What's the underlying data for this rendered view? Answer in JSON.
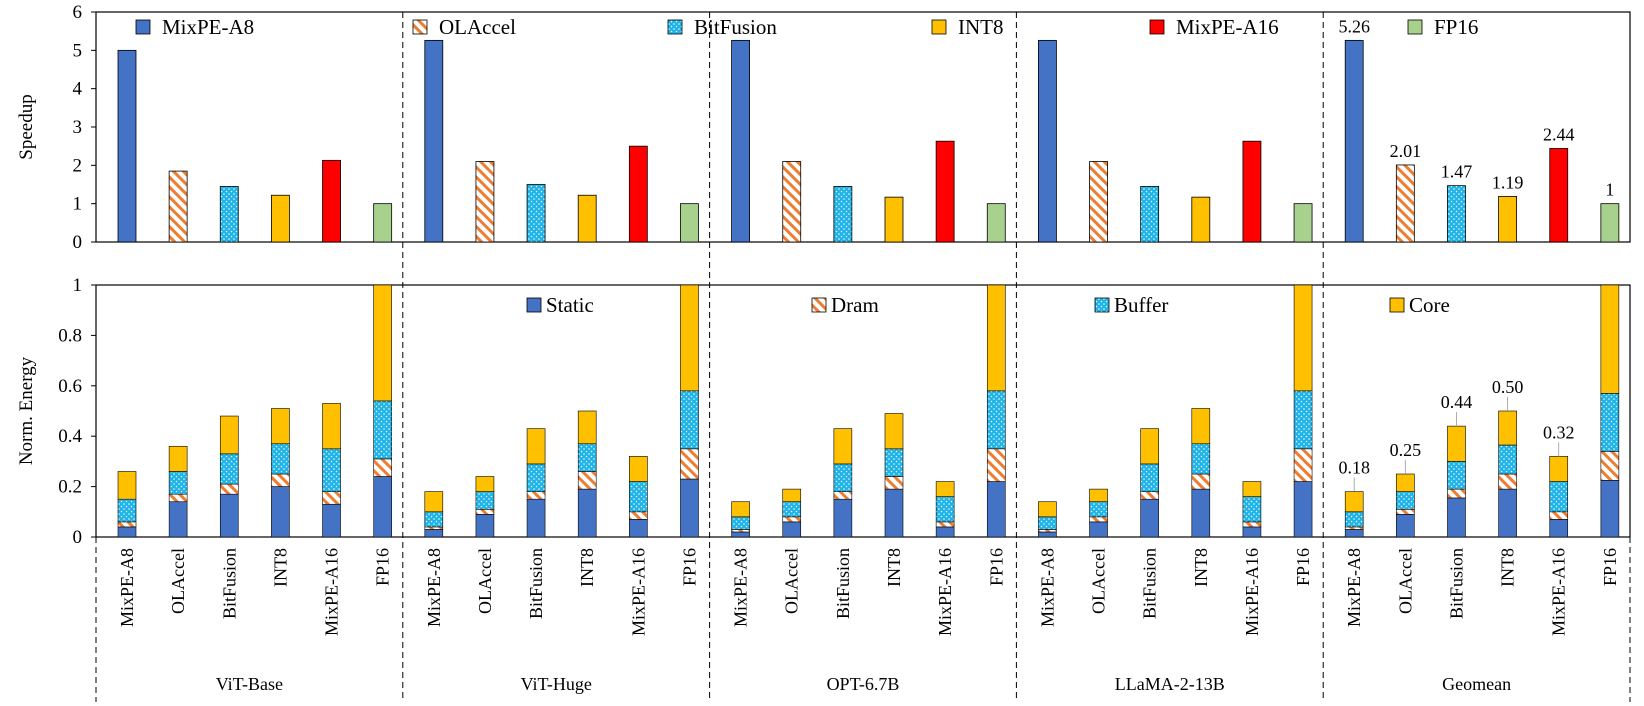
{
  "chart_data": [
    {
      "type": "bar",
      "ylabel": "Speedup",
      "ylim": [
        0,
        6
      ],
      "yticks": [
        "0",
        "1",
        "2",
        "3",
        "4",
        "5",
        "6"
      ],
      "grid": false,
      "legend_position": "top",
      "groups": [
        "ViT-Base",
        "ViT-Huge",
        "OPT-6.7B",
        "LLaMA-2-13B",
        "Geomean"
      ],
      "categories": [
        "MixPE-A8",
        "OLAccel",
        "BitFusion",
        "INT8",
        "MixPE-A16",
        "FP16"
      ],
      "legend": [
        "MixPE-A8",
        "OLAccel",
        "BitFusion",
        "INT8",
        "MixPE-A16",
        "FP16"
      ],
      "colors": {
        "MixPE-A8": "#4472C4",
        "OLAccel": "#ED7D31",
        "BitFusion": "#1EB4E8",
        "INT8": "#FFC000",
        "MixPE-A16": "#FF0000",
        "FP16": "#A9D18E"
      },
      "values": [
        [
          5.0,
          1.85,
          1.45,
          1.22,
          2.13,
          1.0
        ],
        [
          5.26,
          2.1,
          1.5,
          1.22,
          2.5,
          1.0
        ],
        [
          5.26,
          2.1,
          1.45,
          1.17,
          2.63,
          1.0
        ],
        [
          5.26,
          2.1,
          1.45,
          1.17,
          2.63,
          1.0
        ],
        [
          5.26,
          2.01,
          1.47,
          1.19,
          2.44,
          1.0
        ]
      ],
      "data_labels": {
        "group": "Geomean",
        "labels": [
          "5.26",
          "2.01",
          "1.47",
          "1.19",
          "2.44",
          "1"
        ]
      }
    },
    {
      "type": "bar",
      "stacked": true,
      "ylabel": "Norm. Energy",
      "ylim": [
        0,
        1
      ],
      "yticks": [
        "0",
        "0.2",
        "0.4",
        "0.6",
        "0.8",
        "1"
      ],
      "grid": false,
      "legend_position": "top",
      "groups": [
        "ViT-Base",
        "ViT-Huge",
        "OPT-6.7B",
        "LLaMA-2-13B",
        "Geomean"
      ],
      "categories": [
        "MixPE-A8",
        "OLAccel",
        "BitFusion",
        "INT8",
        "MixPE-A16",
        "FP16"
      ],
      "components": [
        "Static",
        "Dram",
        "Buffer",
        "Core"
      ],
      "colors": {
        "Static": "#4472C4",
        "Dram": "#ED7D31",
        "Buffer": "#1EB4E8",
        "Core": "#FFC000"
      },
      "series_by_group": [
        [
          [
            0.04,
            0.02,
            0.09,
            0.11
          ],
          [
            0.14,
            0.03,
            0.09,
            0.1
          ],
          [
            0.17,
            0.04,
            0.12,
            0.15
          ],
          [
            0.2,
            0.05,
            0.12,
            0.14
          ],
          [
            0.13,
            0.05,
            0.17,
            0.18
          ],
          [
            0.24,
            0.07,
            0.23,
            0.46
          ]
        ],
        [
          [
            0.03,
            0.01,
            0.06,
            0.08
          ],
          [
            0.09,
            0.02,
            0.07,
            0.06
          ],
          [
            0.15,
            0.03,
            0.11,
            0.14
          ],
          [
            0.19,
            0.07,
            0.11,
            0.13
          ],
          [
            0.07,
            0.03,
            0.12,
            0.1
          ],
          [
            0.23,
            0.12,
            0.23,
            0.42
          ]
        ],
        [
          [
            0.02,
            0.01,
            0.05,
            0.06
          ],
          [
            0.06,
            0.02,
            0.06,
            0.05
          ],
          [
            0.15,
            0.03,
            0.11,
            0.14
          ],
          [
            0.19,
            0.05,
            0.11,
            0.14
          ],
          [
            0.04,
            0.02,
            0.1,
            0.06
          ],
          [
            0.22,
            0.13,
            0.23,
            0.42
          ]
        ],
        [
          [
            0.02,
            0.01,
            0.05,
            0.06
          ],
          [
            0.06,
            0.02,
            0.06,
            0.05
          ],
          [
            0.15,
            0.03,
            0.11,
            0.14
          ],
          [
            0.19,
            0.06,
            0.12,
            0.14
          ],
          [
            0.04,
            0.02,
            0.1,
            0.06
          ],
          [
            0.22,
            0.13,
            0.23,
            0.42
          ]
        ],
        [
          [
            0.03,
            0.01,
            0.06,
            0.08
          ],
          [
            0.09,
            0.02,
            0.07,
            0.07
          ],
          [
            0.155,
            0.035,
            0.11,
            0.14
          ],
          [
            0.19,
            0.06,
            0.115,
            0.135
          ],
          [
            0.07,
            0.03,
            0.12,
            0.1
          ],
          [
            0.225,
            0.115,
            0.23,
            0.43
          ]
        ]
      ],
      "data_labels": {
        "group": "Geomean",
        "labels": [
          "0.18",
          "0.25",
          "0.44",
          "0.50",
          "0.32",
          ""
        ]
      }
    }
  ]
}
